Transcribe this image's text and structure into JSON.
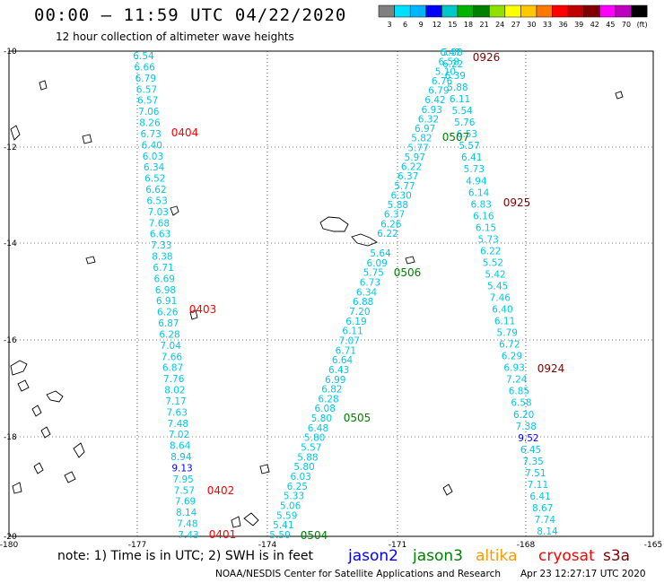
{
  "header": {
    "title": "00:00 – 11:59 UTC 04/22/2020",
    "subtitle": "12 hour collection of altimeter wave heights"
  },
  "legend": {
    "ticks": [
      "3",
      "6",
      "9",
      "12",
      "15",
      "18",
      "21",
      "24",
      "27",
      "30",
      "33",
      "36",
      "39",
      "42",
      "45",
      "70",
      "(ft)"
    ],
    "colors": [
      "#808080",
      "#00e0ff",
      "#00b4ff",
      "#0000ff",
      "#00c8c8",
      "#00b400",
      "#008000",
      "#90e000",
      "#ffff00",
      "#ffc800",
      "#ff7800",
      "#ff0000",
      "#c00000",
      "#800000",
      "#ff00ff",
      "#c000c0",
      "#000000"
    ]
  },
  "map": {
    "lat_labels": [
      "-10",
      "-12",
      "-14",
      "-16",
      "-18",
      "-20"
    ],
    "lon_labels": [
      "-180",
      "-177",
      "-174",
      "-171",
      "-168",
      "-165"
    ]
  },
  "tracks": [
    {
      "values": [
        "6.54",
        "6.66",
        "6.79",
        "6.57",
        "6.57",
        "7.06",
        "8.26",
        "6.73",
        "6.40",
        "6.03",
        "6.34",
        "6.52",
        "6.62",
        "6.53",
        "7.03",
        "7.68",
        "6.63",
        "7.33",
        "8.38",
        "6.71",
        "6.69",
        "6.98",
        "6.91",
        "6.26",
        "6.87",
        "6.28",
        "7.04",
        "7.66",
        "6.87",
        "7.76",
        "8.02",
        "7.17",
        "7.63",
        "7.48",
        "7.02",
        "8.64",
        "8.94",
        "9.13",
        "7.95",
        "7.57",
        "7.69",
        "8.14",
        "7.48",
        "7.43"
      ]
    },
    {
      "values": [
        "5.50",
        "5.41",
        "5.59",
        "5.06",
        "5.33",
        "6.25",
        "6.03",
        "5.80",
        "5.88",
        "5.57",
        "5.80",
        "6.48",
        "5.80",
        "6.08",
        "6.28",
        "6.82",
        "6.99",
        "6.43",
        "6.64",
        "6.71",
        "7.07",
        "6.11",
        "6.19",
        "7.20",
        "6.88",
        "6.34",
        "6.73",
        "5.75",
        "6.09",
        "5.64"
      ]
    },
    {
      "values": [
        "6.22",
        "6.26",
        "6.37",
        "5.88",
        "6.30",
        "5.77",
        "6.37",
        "6.22",
        "5.97",
        "5.77",
        "5.82",
        "6.97",
        "6.32",
        "6.93",
        "6.42",
        "6.79",
        "6.76",
        "5.10",
        "6.58",
        "5.38"
      ]
    },
    {
      "values": [
        "6.47",
        "6.22",
        "6.39",
        "5.88",
        "6.11",
        "5.54",
        "5.76",
        "6.53",
        "5.57",
        "6.41",
        "5.73",
        "4.94",
        "6.14",
        "6.83",
        "6.16",
        "6.15",
        "5.73",
        "6.22",
        "5.52",
        "5.42",
        "5.45",
        "7.46",
        "6.40",
        "6.11",
        "5.79",
        "6.72",
        "6.29",
        "6.93",
        "7.24",
        "6.85",
        "6.58",
        "6.20",
        "7.38",
        "9.52",
        "6.45",
        "7.35",
        "7.51",
        "7.11",
        "6.41",
        "8.67",
        "7.74",
        "8.14"
      ]
    }
  ],
  "passes": [
    {
      "label": "0404",
      "sat": "cryosat"
    },
    {
      "label": "0403",
      "sat": "cryosat"
    },
    {
      "label": "0402",
      "sat": "cryosat"
    },
    {
      "label": "0401",
      "sat": "cryosat"
    },
    {
      "label": "0926",
      "sat": "s3a"
    },
    {
      "label": "0925",
      "sat": "s3a"
    },
    {
      "label": "0924",
      "sat": "s3a"
    },
    {
      "label": "0507",
      "sat": "jason3"
    },
    {
      "label": "0506",
      "sat": "jason3"
    },
    {
      "label": "0505",
      "sat": "jason3"
    },
    {
      "label": "0504",
      "sat": "jason3"
    }
  ],
  "footer": {
    "note": "note:  1) Time is in UTC;  2) SWH is in feet",
    "satellites": [
      {
        "name": "jason2",
        "color": "#0000ff"
      },
      {
        "name": "jason3",
        "color": "#008000"
      },
      {
        "name": "altika",
        "color": "#ff9900"
      },
      {
        "name": "cryosat",
        "color": "#ff0000"
      },
      {
        "name": "s3a",
        "color": "#800000"
      }
    ],
    "credit": "NOAA/NESDIS Center for Satellite Applications and Research",
    "timestamp": "Apr 23 12:27:17 UTC 2020"
  }
}
